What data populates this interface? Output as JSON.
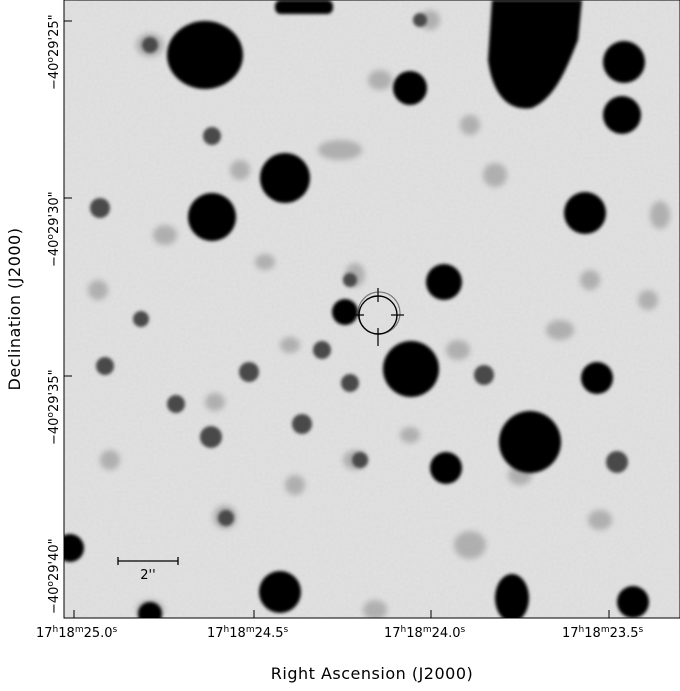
{
  "figure": {
    "x_axis_title": "Right Ascension (J2000)",
    "y_axis_title": "Declination (J2000)",
    "scale_bar_label": "2''",
    "ra_ticks": [
      {
        "h": "17",
        "m": "18",
        "s": "25.0"
      },
      {
        "h": "17",
        "m": "18",
        "s": "24.5"
      },
      {
        "h": "17",
        "m": "18",
        "s": "24.0"
      },
      {
        "h": "17",
        "m": "18",
        "s": "23.5"
      }
    ],
    "dec_ticks": [
      {
        "d": "−40",
        "m": "29",
        "s": "25"
      },
      {
        "d": "−40",
        "m": "29",
        "s": "30"
      },
      {
        "d": "−40",
        "m": "29",
        "s": "35"
      },
      {
        "d": "−40",
        "m": "29",
        "s": "40"
      }
    ],
    "image": {
      "description_type": "inverted grayscale star field",
      "background_color": "#dedede",
      "star_color": "#000000",
      "target_marker": "circle with crosshair"
    }
  }
}
